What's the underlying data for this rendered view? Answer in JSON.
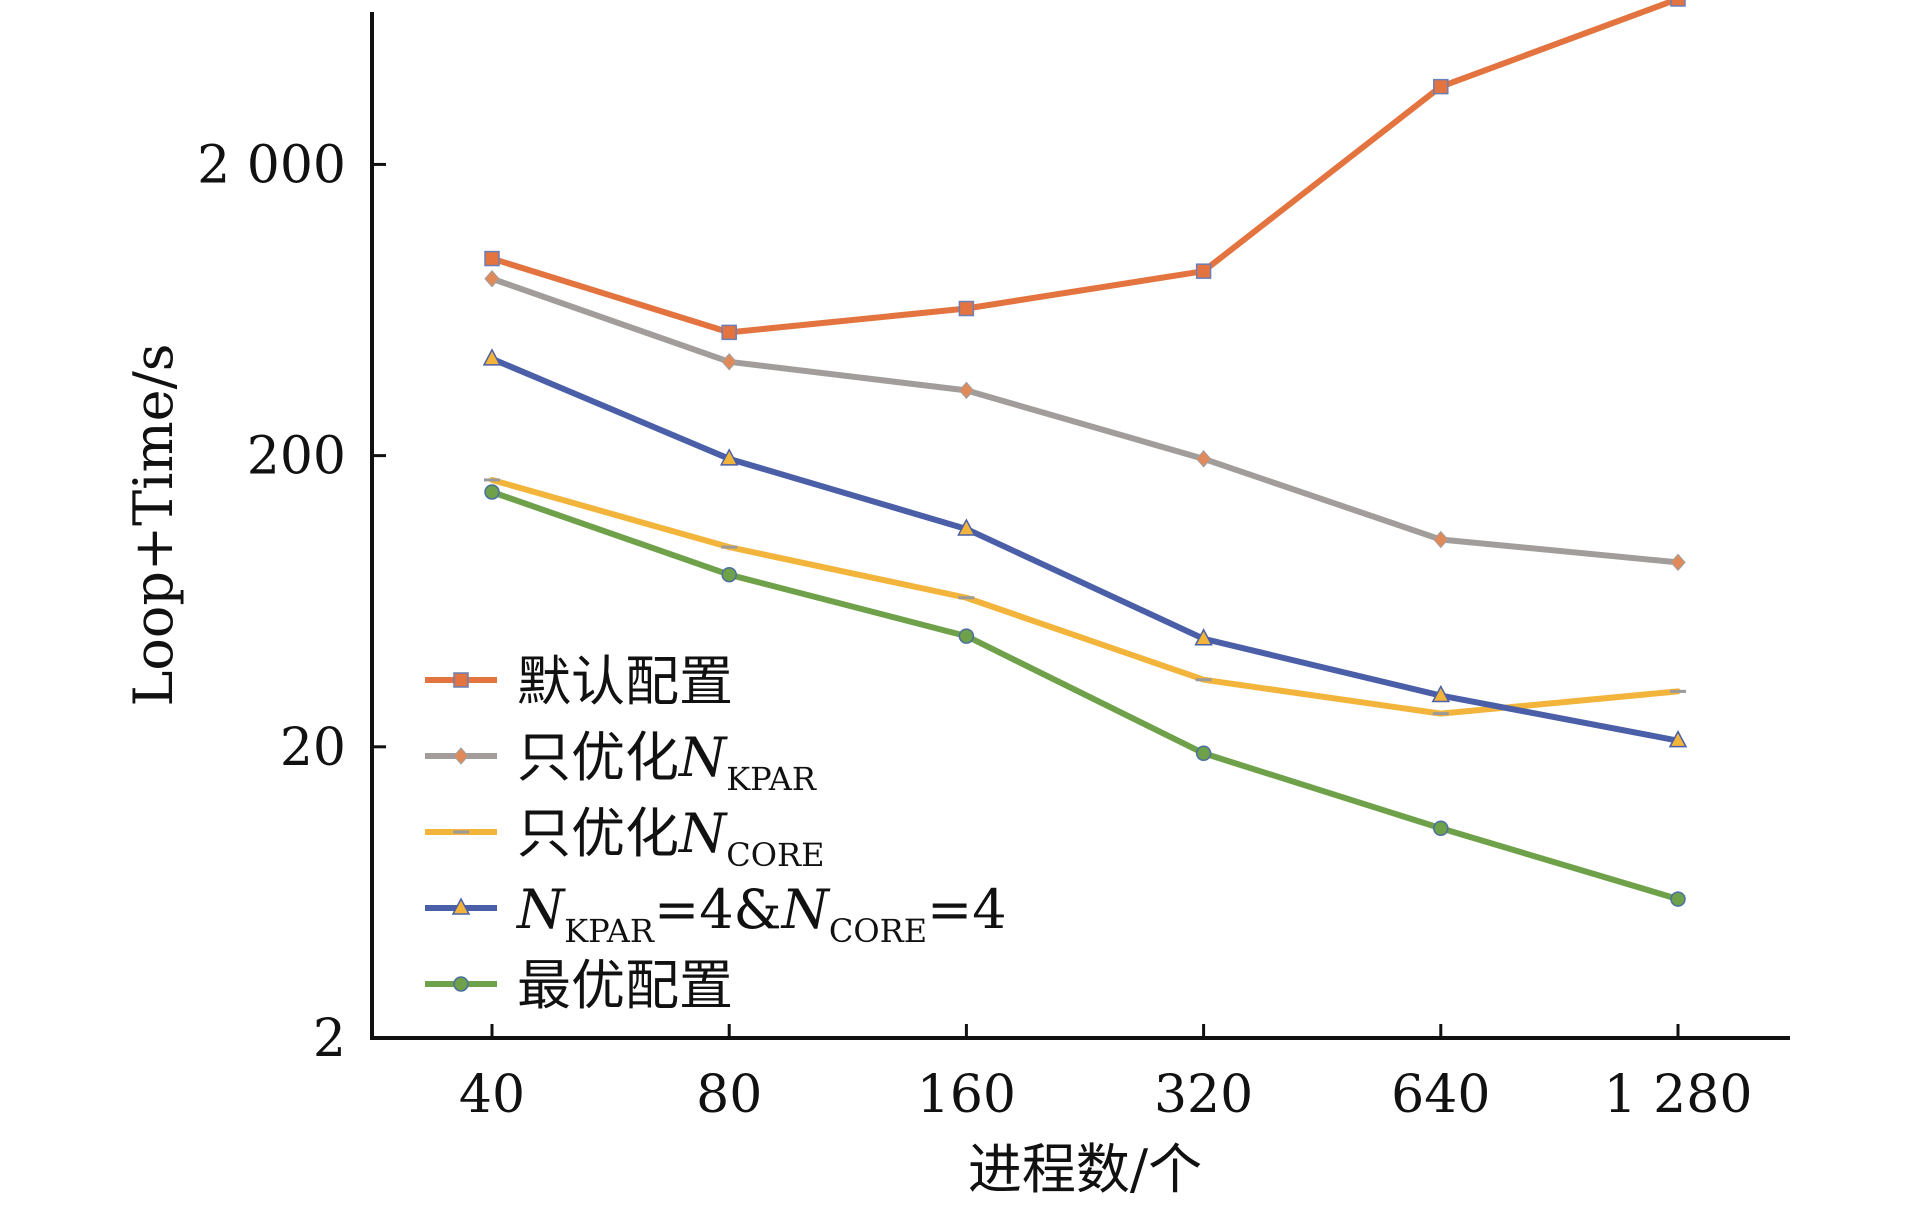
{
  "chart_data": {
    "type": "line",
    "xlabel": "进程数/个",
    "ylabel": "Loop+Time/s",
    "x_scale": "log2",
    "y_scale": "log10",
    "x": [
      40,
      80,
      160,
      320,
      640,
      1280
    ],
    "x_tick_labels": [
      "40",
      "80",
      "160",
      "320",
      "640",
      "1 280"
    ],
    "y_ticks": [
      2,
      20,
      200,
      2000
    ],
    "y_tick_labels": [
      "2",
      "20",
      "200",
      "2 000"
    ],
    "ylim": [
      2,
      7000
    ],
    "grid": false,
    "legend_position": "bottom-left",
    "series": [
      {
        "name": "默认配置",
        "legend_main": "默认配置",
        "legend_sub": "",
        "legend_suffix": "",
        "color": "#E3743F",
        "marker": "square",
        "values": [
          950,
          530,
          640,
          860,
          3700,
          7400
        ]
      },
      {
        "name": "只优化NKPAR",
        "legend_main": "只优化",
        "legend_sub": "KPAR",
        "legend_suffix": "",
        "color": "#A29D9B",
        "marker": "diamond",
        "values": [
          810,
          420,
          335,
          195,
          103,
          86
        ]
      },
      {
        "name": "只优化NCORE",
        "legend_main": "只优化",
        "legend_sub": "CORE",
        "legend_suffix": "",
        "color": "#F2B43A",
        "marker": "dash",
        "values": [
          165,
          97,
          65,
          34,
          26,
          31
        ]
      },
      {
        "name": "NKPAR=4&NCORE=4",
        "legend_main": "",
        "legend_sub": "KPAR",
        "legend_suffix": "=4&",
        "legend_sub2": "CORE",
        "legend_suffix2": "=4",
        "color": "#4A5FA8",
        "marker": "triangle",
        "values": [
          430,
          195,
          112,
          47,
          30,
          21
        ]
      },
      {
        "name": "最优配置",
        "legend_main": "最优配置",
        "legend_sub": "",
        "legend_suffix": "",
        "color": "#6FA04A",
        "marker": "circle",
        "values": [
          150,
          78,
          48,
          19,
          10.5,
          6
        ]
      }
    ]
  }
}
